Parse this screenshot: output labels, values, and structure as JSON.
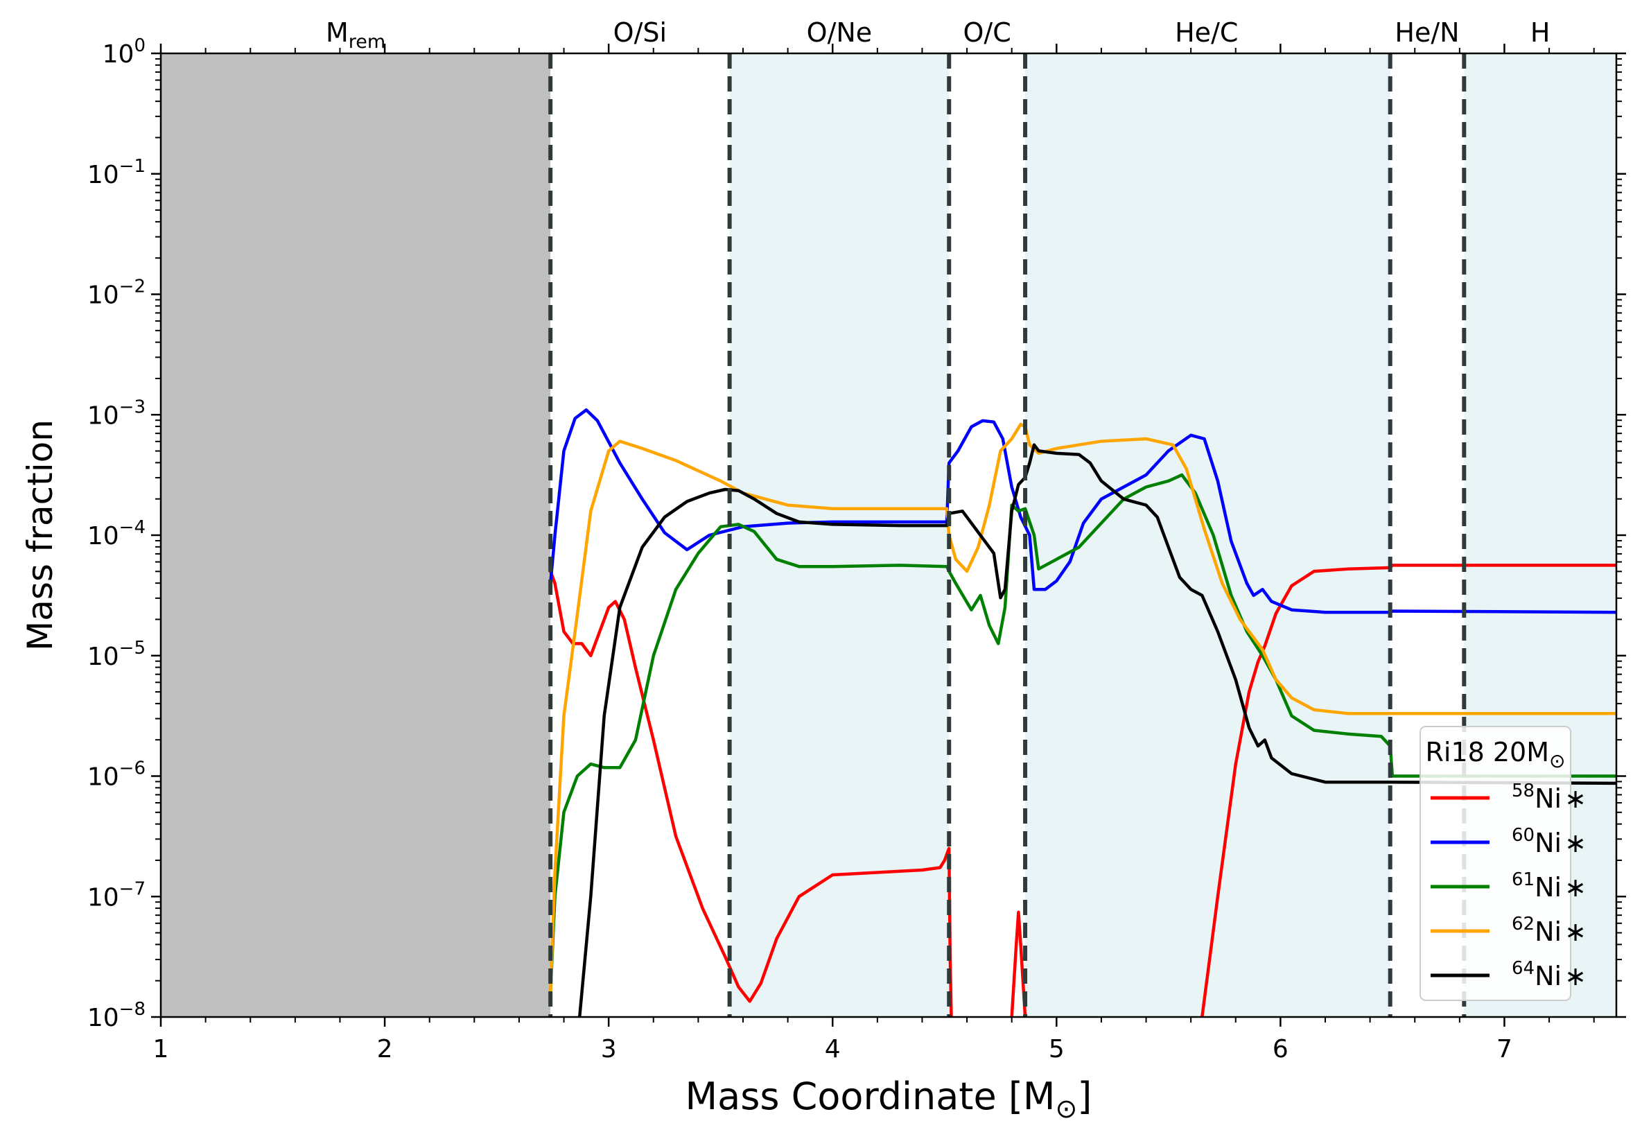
{
  "chart_data": {
    "type": "line",
    "ylabel": "Mass fraction",
    "xlabel_main": "Mass Coordinate [M",
    "xlabel_sub": "⊙",
    "xlabel_end": "]",
    "xlim": [
      1.0,
      7.5
    ],
    "ylim_log10": [
      -8,
      0
    ],
    "yscale": "log",
    "x_ticks": [
      {
        "value": 1,
        "label": "1"
      },
      {
        "value": 2,
        "label": "2"
      },
      {
        "value": 3,
        "label": "3"
      },
      {
        "value": 4,
        "label": "4"
      },
      {
        "value": 5,
        "label": "5"
      },
      {
        "value": 6,
        "label": "6"
      },
      {
        "value": 7,
        "label": "7"
      }
    ],
    "y_ticks": [
      {
        "exp": 0,
        "base": "10",
        "sup": "0"
      },
      {
        "exp": -1,
        "base": "10",
        "sup": "−1"
      },
      {
        "exp": -2,
        "base": "10",
        "sup": "−2"
      },
      {
        "exp": -3,
        "base": "10",
        "sup": "−3"
      },
      {
        "exp": -4,
        "base": "10",
        "sup": "−4"
      },
      {
        "exp": -5,
        "base": "10",
        "sup": "−5"
      },
      {
        "exp": -6,
        "base": "10",
        "sup": "−6"
      },
      {
        "exp": -7,
        "base": "10",
        "sup": "−7"
      },
      {
        "exp": -8,
        "base": "10",
        "sup": "−8"
      }
    ],
    "remnant": {
      "x0": 1.0,
      "x1": 2.74,
      "label_main": "M",
      "label_sub": "rem",
      "label_x": 1.87,
      "color": "#bfbfbf"
    },
    "zones": [
      {
        "label": "O/Si",
        "x0": 2.74,
        "x1": 3.54,
        "label_x": 3.14,
        "shaded": false
      },
      {
        "label": "O/Ne",
        "x0": 3.54,
        "x1": 4.52,
        "label_x": 4.03,
        "shaded": true
      },
      {
        "label": "O/C",
        "x0": 4.52,
        "x1": 4.86,
        "label_x": 4.69,
        "shaded": false
      },
      {
        "label": "He/C",
        "x0": 4.86,
        "x1": 6.49,
        "label_x": 5.67,
        "shaded": true
      },
      {
        "label": "He/N",
        "x0": 6.49,
        "x1": 6.82,
        "label_x": 6.655,
        "shaded": false
      },
      {
        "label": "H",
        "x0": 6.82,
        "x1": 7.5,
        "label_x": 7.16,
        "shaded": true
      }
    ],
    "shade_color": "#e8f4f6",
    "boundaries": [
      2.74,
      3.54,
      4.52,
      4.86,
      6.49,
      6.82
    ],
    "legend": {
      "title_main": "Ri18 20M",
      "title_sub": "⊙",
      "position": "lower right"
    },
    "series": [
      {
        "name": "Ni58",
        "iso": "58",
        "elem": "Ni",
        "suffix": "∗",
        "color": "#ff0000",
        "segments": [
          [
            [
              2.74,
              -4.3
            ],
            [
              2.76,
              -4.4
            ],
            [
              2.8,
              -4.8
            ],
            [
              2.84,
              -4.9
            ],
            [
              2.88,
              -4.9
            ],
            [
              2.92,
              -5.0
            ],
            [
              2.96,
              -4.8
            ],
            [
              3.0,
              -4.6
            ],
            [
              3.03,
              -4.55
            ],
            [
              3.07,
              -4.7
            ],
            [
              3.12,
              -5.1
            ],
            [
              3.2,
              -5.7
            ],
            [
              3.3,
              -6.5
            ],
            [
              3.42,
              -7.1
            ],
            [
              3.52,
              -7.5
            ],
            [
              3.58,
              -7.75
            ],
            [
              3.63,
              -7.87
            ],
            [
              3.68,
              -7.72
            ],
            [
              3.75,
              -7.35
            ],
            [
              3.85,
              -7.0
            ],
            [
              4.0,
              -6.82
            ],
            [
              4.2,
              -6.8
            ],
            [
              4.4,
              -6.78
            ],
            [
              4.48,
              -6.76
            ],
            [
              4.5,
              -6.7
            ],
            [
              4.52,
              -6.6
            ],
            [
              4.525,
              -7.5
            ],
            [
              4.53,
              -8.0
            ]
          ],
          [
            [
              4.8,
              -8.0
            ],
            [
              4.82,
              -7.4
            ],
            [
              4.83,
              -7.13
            ],
            [
              4.84,
              -7.4
            ],
            [
              4.86,
              -8.0
            ]
          ],
          [
            [
              5.65,
              -8.0
            ],
            [
              5.72,
              -7.0
            ],
            [
              5.8,
              -5.9
            ],
            [
              5.86,
              -5.3
            ],
            [
              5.9,
              -5.05
            ],
            [
              5.93,
              -4.92
            ],
            [
              5.98,
              -4.65
            ],
            [
              6.05,
              -4.42
            ],
            [
              6.15,
              -4.3
            ],
            [
              6.3,
              -4.28
            ],
            [
              6.49,
              -4.27
            ],
            [
              6.5,
              -4.25
            ],
            [
              7.5,
              -4.25
            ]
          ]
        ]
      },
      {
        "name": "Ni60",
        "iso": "60",
        "elem": "Ni",
        "suffix": "∗",
        "color": "#0000ff",
        "segments": [
          [
            [
              2.74,
              -4.4
            ],
            [
              2.76,
              -4.0
            ],
            [
              2.8,
              -3.3
            ],
            [
              2.85,
              -3.03
            ],
            [
              2.9,
              -2.96
            ],
            [
              2.95,
              -3.05
            ],
            [
              3.05,
              -3.4
            ],
            [
              3.15,
              -3.7
            ],
            [
              3.25,
              -3.98
            ],
            [
              3.35,
              -4.12
            ],
            [
              3.45,
              -4.0
            ],
            [
              3.6,
              -3.93
            ],
            [
              3.8,
              -3.9
            ],
            [
              4.0,
              -3.89
            ],
            [
              4.3,
              -3.89
            ],
            [
              4.51,
              -3.89
            ],
            [
              4.52,
              -3.4
            ],
            [
              4.56,
              -3.3
            ],
            [
              4.62,
              -3.1
            ],
            [
              4.67,
              -3.05
            ],
            [
              4.72,
              -3.06
            ],
            [
              4.76,
              -3.2
            ],
            [
              4.8,
              -3.6
            ],
            [
              4.84,
              -3.85
            ],
            [
              4.88,
              -4.0
            ],
            [
              4.9,
              -4.45
            ],
            [
              4.95,
              -4.45
            ],
            [
              5.0,
              -4.38
            ],
            [
              5.06,
              -4.22
            ],
            [
              5.12,
              -3.9
            ],
            [
              5.2,
              -3.7
            ],
            [
              5.3,
              -3.6
            ],
            [
              5.4,
              -3.5
            ],
            [
              5.5,
              -3.3
            ],
            [
              5.6,
              -3.17
            ],
            [
              5.66,
              -3.2
            ],
            [
              5.72,
              -3.55
            ],
            [
              5.78,
              -4.05
            ],
            [
              5.85,
              -4.4
            ],
            [
              5.88,
              -4.5
            ],
            [
              5.92,
              -4.45
            ],
            [
              5.96,
              -4.55
            ],
            [
              6.05,
              -4.62
            ],
            [
              6.2,
              -4.64
            ],
            [
              6.49,
              -4.64
            ],
            [
              6.5,
              -4.63
            ],
            [
              7.5,
              -4.64
            ]
          ]
        ]
      },
      {
        "name": "Ni61",
        "iso": "61",
        "elem": "Ni",
        "suffix": "∗",
        "color": "#008000",
        "segments": [
          [
            [
              2.74,
              -7.8
            ],
            [
              2.76,
              -7.0
            ],
            [
              2.8,
              -6.3
            ],
            [
              2.86,
              -6.0
            ],
            [
              2.92,
              -5.9
            ],
            [
              2.98,
              -5.93
            ],
            [
              3.05,
              -5.93
            ],
            [
              3.12,
              -5.7
            ],
            [
              3.2,
              -5.0
            ],
            [
              3.3,
              -4.45
            ],
            [
              3.4,
              -4.15
            ],
            [
              3.5,
              -3.93
            ],
            [
              3.58,
              -3.91
            ],
            [
              3.65,
              -3.97
            ],
            [
              3.75,
              -4.2
            ],
            [
              3.85,
              -4.26
            ],
            [
              4.0,
              -4.26
            ],
            [
              4.3,
              -4.25
            ],
            [
              4.51,
              -4.26
            ],
            [
              4.52,
              -4.3
            ],
            [
              4.55,
              -4.4
            ],
            [
              4.62,
              -4.62
            ],
            [
              4.66,
              -4.5
            ],
            [
              4.7,
              -4.75
            ],
            [
              4.74,
              -4.9
            ],
            [
              4.77,
              -4.6
            ],
            [
              4.8,
              -3.75
            ],
            [
              4.83,
              -3.8
            ],
            [
              4.86,
              -3.78
            ],
            [
              4.9,
              -4.0
            ],
            [
              4.92,
              -4.28
            ],
            [
              5.0,
              -4.2
            ],
            [
              5.1,
              -4.1
            ],
            [
              5.2,
              -3.9
            ],
            [
              5.3,
              -3.7
            ],
            [
              5.4,
              -3.6
            ],
            [
              5.5,
              -3.55
            ],
            [
              5.56,
              -3.5
            ],
            [
              5.62,
              -3.65
            ],
            [
              5.7,
              -4.0
            ],
            [
              5.78,
              -4.5
            ],
            [
              5.85,
              -4.8
            ],
            [
              5.92,
              -5.0
            ],
            [
              5.98,
              -5.2
            ],
            [
              6.05,
              -5.5
            ],
            [
              6.15,
              -5.62
            ],
            [
              6.3,
              -5.65
            ],
            [
              6.45,
              -5.67
            ],
            [
              6.49,
              -5.75
            ],
            [
              6.5,
              -6.0
            ],
            [
              7.5,
              -6.0
            ]
          ]
        ]
      },
      {
        "name": "Ni62",
        "iso": "62",
        "elem": "Ni",
        "suffix": "∗",
        "color": "#ffa500",
        "segments": [
          [
            [
              2.74,
              -7.8
            ],
            [
              2.76,
              -6.8
            ],
            [
              2.8,
              -5.5
            ],
            [
              2.85,
              -4.8
            ],
            [
              2.92,
              -3.8
            ],
            [
              3.0,
              -3.3
            ],
            [
              3.05,
              -3.22
            ],
            [
              3.15,
              -3.28
            ],
            [
              3.3,
              -3.38
            ],
            [
              3.5,
              -3.55
            ],
            [
              3.6,
              -3.65
            ],
            [
              3.8,
              -3.75
            ],
            [
              4.0,
              -3.78
            ],
            [
              4.3,
              -3.78
            ],
            [
              4.51,
              -3.78
            ],
            [
              4.52,
              -4.0
            ],
            [
              4.55,
              -4.2
            ],
            [
              4.6,
              -4.3
            ],
            [
              4.65,
              -4.1
            ],
            [
              4.7,
              -3.75
            ],
            [
              4.75,
              -3.3
            ],
            [
              4.8,
              -3.2
            ],
            [
              4.84,
              -3.08
            ],
            [
              4.86,
              -3.1
            ],
            [
              4.88,
              -3.25
            ],
            [
              4.92,
              -3.32
            ],
            [
              5.0,
              -3.28
            ],
            [
              5.1,
              -3.25
            ],
            [
              5.2,
              -3.22
            ],
            [
              5.4,
              -3.2
            ],
            [
              5.52,
              -3.25
            ],
            [
              5.58,
              -3.45
            ],
            [
              5.66,
              -3.95
            ],
            [
              5.74,
              -4.4
            ],
            [
              5.82,
              -4.7
            ],
            [
              5.88,
              -4.85
            ],
            [
              5.92,
              -4.95
            ],
            [
              5.98,
              -5.2
            ],
            [
              6.05,
              -5.35
            ],
            [
              6.15,
              -5.45
            ],
            [
              6.3,
              -5.48
            ],
            [
              6.49,
              -5.48
            ],
            [
              7.5,
              -5.48
            ]
          ]
        ]
      },
      {
        "name": "Ni64",
        "iso": "64",
        "elem": "Ni",
        "suffix": "∗",
        "color": "#000000",
        "segments": [
          [
            [
              2.87,
              -8.0
            ],
            [
              2.92,
              -7.0
            ],
            [
              2.98,
              -5.5
            ],
            [
              3.05,
              -4.6
            ],
            [
              3.15,
              -4.1
            ],
            [
              3.25,
              -3.85
            ],
            [
              3.35,
              -3.72
            ],
            [
              3.45,
              -3.65
            ],
            [
              3.52,
              -3.62
            ],
            [
              3.58,
              -3.63
            ],
            [
              3.65,
              -3.7
            ],
            [
              3.75,
              -3.82
            ],
            [
              3.85,
              -3.89
            ],
            [
              4.0,
              -3.91
            ],
            [
              4.3,
              -3.92
            ],
            [
              4.51,
              -3.92
            ],
            [
              4.52,
              -3.82
            ],
            [
              4.58,
              -3.8
            ],
            [
              4.62,
              -3.9
            ],
            [
              4.68,
              -4.05
            ],
            [
              4.72,
              -4.15
            ],
            [
              4.75,
              -4.52
            ],
            [
              4.77,
              -4.45
            ],
            [
              4.8,
              -3.8
            ],
            [
              4.83,
              -3.58
            ],
            [
              4.86,
              -3.52
            ],
            [
              4.88,
              -3.4
            ],
            [
              4.9,
              -3.25
            ],
            [
              4.92,
              -3.3
            ],
            [
              5.0,
              -3.32
            ],
            [
              5.1,
              -3.33
            ],
            [
              5.15,
              -3.4
            ],
            [
              5.2,
              -3.55
            ],
            [
              5.3,
              -3.7
            ],
            [
              5.4,
              -3.75
            ],
            [
              5.45,
              -3.85
            ],
            [
              5.5,
              -4.1
            ],
            [
              5.55,
              -4.35
            ],
            [
              5.6,
              -4.45
            ],
            [
              5.65,
              -4.5
            ],
            [
              5.72,
              -4.8
            ],
            [
              5.8,
              -5.2
            ],
            [
              5.86,
              -5.6
            ],
            [
              5.9,
              -5.75
            ],
            [
              5.93,
              -5.7
            ],
            [
              5.96,
              -5.85
            ],
            [
              6.05,
              -5.98
            ],
            [
              6.2,
              -6.05
            ],
            [
              6.49,
              -6.05
            ],
            [
              7.5,
              -6.06
            ]
          ]
        ]
      }
    ]
  }
}
